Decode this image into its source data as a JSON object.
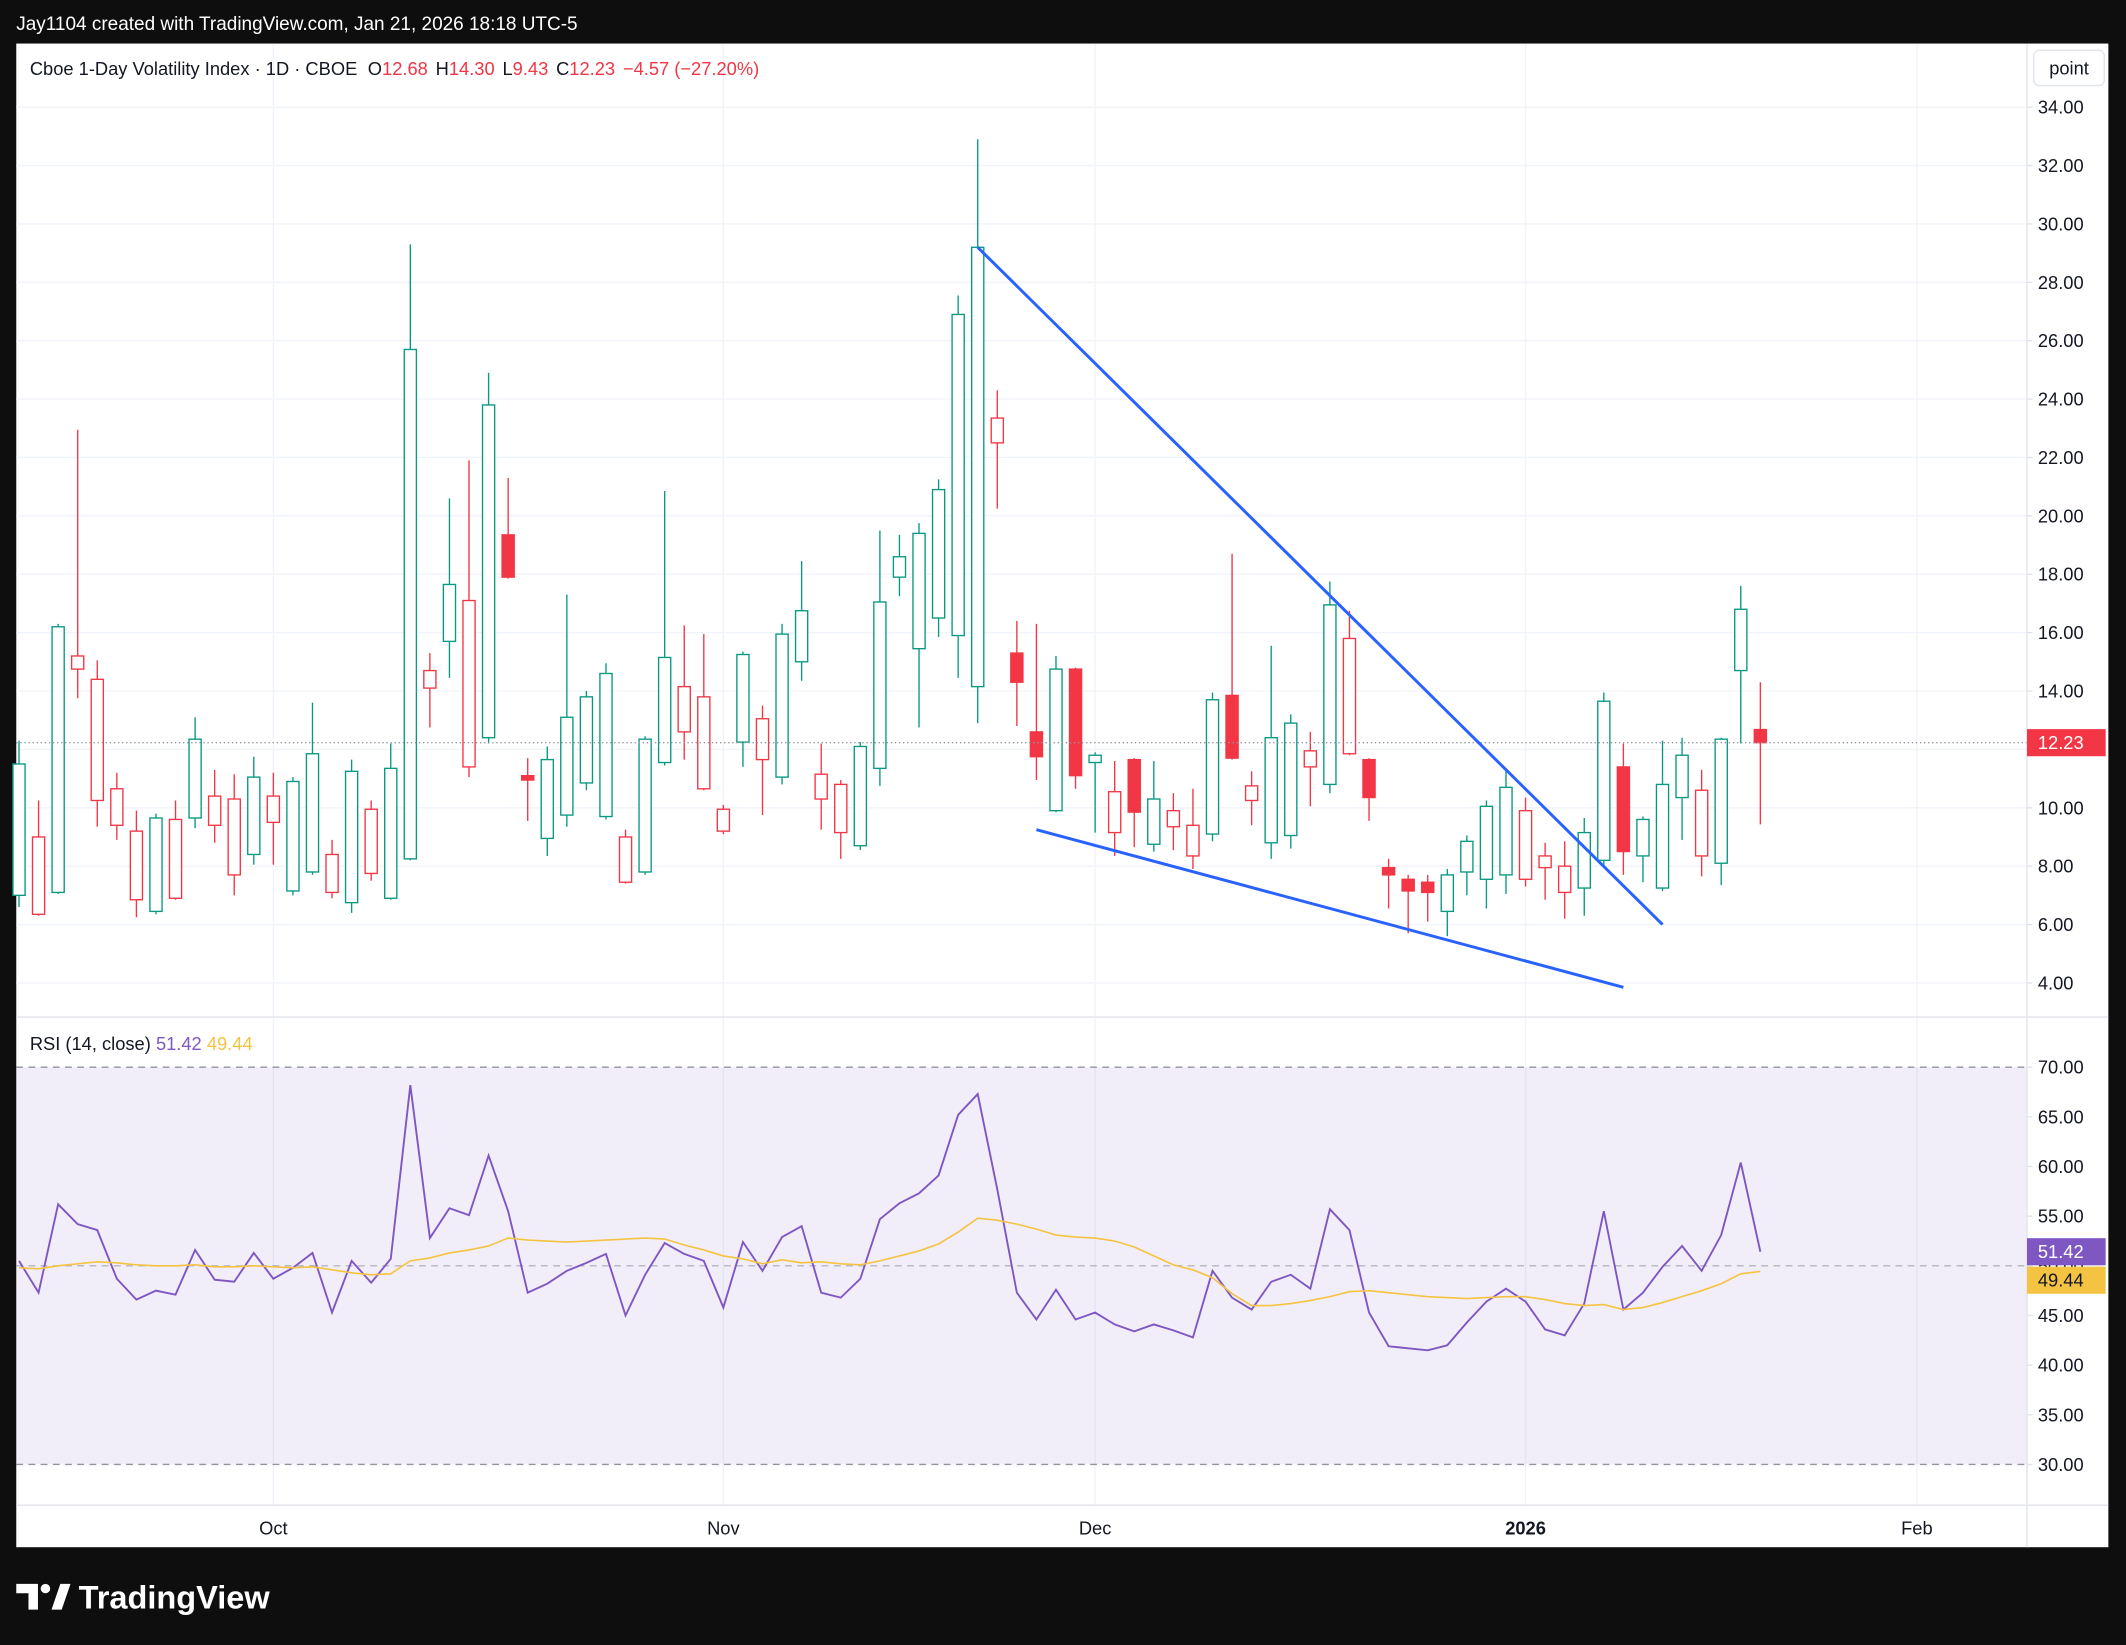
{
  "header": {
    "credit": "Jay1104 created with TradingView.com, Jan 21, 2026 18:18 UTC-5"
  },
  "footer": {
    "logo": "TradingView"
  },
  "scale_mode": "point",
  "chart_data": [
    {
      "type": "candlestick",
      "title": "Cboe 1-Day Volatility Index · 1D · CBOE",
      "ohlc_labels": [
        "O",
        "H",
        "L",
        "C"
      ],
      "ohlc_values": [
        "12.68",
        "14.30",
        "9.43",
        "12.23"
      ],
      "change": "−4.57",
      "change_percent": "(−27.20%)",
      "open": [
        7.0,
        6.35,
        7.1,
        14.75,
        10.25,
        9.4,
        6.85,
        6.45,
        6.9,
        9.65,
        9.4,
        7.7,
        8.4,
        9.5,
        7.15,
        7.8,
        7.1,
        6.75,
        7.75,
        6.9,
        8.25,
        14.1,
        15.7,
        11.4,
        12.4,
        19.35,
        11.1,
        8.95,
        9.75,
        10.85,
        9.7,
        7.45,
        7.8,
        11.55,
        12.6,
        10.65,
        9.2,
        12.25,
        11.65,
        11.05,
        15.0,
        10.3,
        9.15,
        8.7,
        11.35,
        17.9,
        15.45,
        16.5,
        15.9,
        14.15,
        22.5,
        15.3,
        12.6,
        9.9,
        14.75,
        11.55,
        9.15,
        11.65,
        8.75,
        9.35,
        8.35,
        9.1,
        13.85,
        10.25,
        8.8,
        9.05,
        11.4,
        10.8,
        11.85,
        11.65,
        7.95,
        7.55,
        7.45,
        6.45,
        7.8,
        7.55,
        7.7,
        7.55,
        7.95,
        7.1,
        7.25,
        8.2,
        11.4,
        8.35,
        7.25,
        10.35,
        8.35,
        8.1,
        14.7,
        12.68
      ],
      "high": [
        12.3,
        10.25,
        16.3,
        22.95,
        15.05,
        11.2,
        9.9,
        9.8,
        10.25,
        13.1,
        11.3,
        11.15,
        11.75,
        11.2,
        11.05,
        13.6,
        8.9,
        11.65,
        10.25,
        12.2,
        29.3,
        15.3,
        20.6,
        21.9,
        24.9,
        21.3,
        11.7,
        12.1,
        17.3,
        14.0,
        14.95,
        9.25,
        12.45,
        20.85,
        16.25,
        15.95,
        10.1,
        15.35,
        13.5,
        16.3,
        18.45,
        12.2,
        10.95,
        12.25,
        19.5,
        19.35,
        19.75,
        21.25,
        27.55,
        32.9,
        24.3,
        16.4,
        16.3,
        15.2,
        14.8,
        11.9,
        11.6,
        11.7,
        11.6,
        10.5,
        10.65,
        13.95,
        18.7,
        11.25,
        15.55,
        13.2,
        12.6,
        17.75,
        16.75,
        11.7,
        8.25,
        7.7,
        7.7,
        7.9,
        9.05,
        10.25,
        11.3,
        10.35,
        8.8,
        8.85,
        9.65,
        13.95,
        12.2,
        9.7,
        12.3,
        12.4,
        11.3,
        12.4,
        17.6,
        14.3
      ],
      "low": [
        6.6,
        6.3,
        7.05,
        13.75,
        9.35,
        8.9,
        6.25,
        6.35,
        6.85,
        9.3,
        8.8,
        7.0,
        8.05,
        8.05,
        7.0,
        7.7,
        6.9,
        6.4,
        7.5,
        6.85,
        8.2,
        12.75,
        14.45,
        11.05,
        12.2,
        17.85,
        9.55,
        8.35,
        9.35,
        10.6,
        9.6,
        7.4,
        7.7,
        11.45,
        11.65,
        10.6,
        9.1,
        11.4,
        9.75,
        10.8,
        14.35,
        9.25,
        8.25,
        8.55,
        10.75,
        17.25,
        12.75,
        15.85,
        14.45,
        12.9,
        20.25,
        12.8,
        10.95,
        9.85,
        10.65,
        9.15,
        8.35,
        8.65,
        8.5,
        8.55,
        7.9,
        8.85,
        11.65,
        9.4,
        8.25,
        8.6,
        10.05,
        10.5,
        11.8,
        9.55,
        6.55,
        5.7,
        6.1,
        5.6,
        7.0,
        6.55,
        7.05,
        7.3,
        6.85,
        6.2,
        6.3,
        7.95,
        7.7,
        7.45,
        7.15,
        8.9,
        7.65,
        7.35,
        12.2,
        9.43
      ],
      "close": [
        11.5,
        9.0,
        16.2,
        15.2,
        14.4,
        10.65,
        9.2,
        9.65,
        9.6,
        12.35,
        10.4,
        10.3,
        11.05,
        10.4,
        10.9,
        11.85,
        8.4,
        11.25,
        9.95,
        11.35,
        25.7,
        14.7,
        17.65,
        17.1,
        23.8,
        17.9,
        10.95,
        11.65,
        13.1,
        13.8,
        14.6,
        9.0,
        12.35,
        15.15,
        14.15,
        13.8,
        9.95,
        15.25,
        13.05,
        15.95,
        16.75,
        11.15,
        10.8,
        12.1,
        17.05,
        18.6,
        19.4,
        20.9,
        26.9,
        29.2,
        23.35,
        14.3,
        11.75,
        14.75,
        11.1,
        11.8,
        10.55,
        9.85,
        10.3,
        9.9,
        9.4,
        13.7,
        11.7,
        10.75,
        12.4,
        12.9,
        11.95,
        16.95,
        15.8,
        10.35,
        7.7,
        7.15,
        7.1,
        7.7,
        8.85,
        10.05,
        10.7,
        9.9,
        8.35,
        8.0,
        9.15,
        13.65,
        8.5,
        9.6,
        10.8,
        11.8,
        10.6,
        12.35,
        16.8,
        12.23
      ],
      "up_color": "#089981",
      "down_color": "#f23645",
      "trendlines": [
        {
          "x": [
            49,
            84
          ],
          "y": [
            29.2,
            6.0
          ]
        },
        {
          "x": [
            52,
            82
          ],
          "y": [
            9.25,
            3.85
          ]
        }
      ],
      "trendline_color": "#2962ff",
      "xlim": [
        -0.14,
        102.63
      ],
      "xticks": [
        {
          "value": 13,
          "label": "Oct"
        },
        {
          "value": 36,
          "label": "Nov"
        },
        {
          "value": 55,
          "label": "Dec"
        },
        {
          "value": 77,
          "label": "2026"
        },
        {
          "value": 97,
          "label": "Feb"
        }
      ],
      "ylim": [
        2.83,
        36.18
      ],
      "yticks": [
        {
          "value": 4,
          "label": "4.00"
        },
        {
          "value": 6,
          "label": "6.00"
        },
        {
          "value": 8,
          "label": "8.00"
        },
        {
          "value": 10,
          "label": "10.00"
        },
        {
          "value": 12,
          "label": "12.00"
        },
        {
          "value": 14,
          "label": "14.00"
        },
        {
          "value": 16,
          "label": "16.00"
        },
        {
          "value": 18,
          "label": "18.00"
        },
        {
          "value": 20,
          "label": "20.00"
        },
        {
          "value": 22,
          "label": "22.00"
        },
        {
          "value": 24,
          "label": "24.00"
        },
        {
          "value": 26,
          "label": "26.00"
        },
        {
          "value": 28,
          "label": "28.00"
        },
        {
          "value": 30,
          "label": "30.00"
        },
        {
          "value": 32,
          "label": "32.00"
        },
        {
          "value": 34,
          "label": "34.00"
        }
      ],
      "grid": true
    },
    {
      "type": "line",
      "title": "RSI (14, close)",
      "series": [
        {
          "color": "#7e57c2",
          "values": [
            50.5,
            47.3,
            56.2,
            54.2,
            53.6,
            48.7,
            46.6,
            47.5,
            47.1,
            51.6,
            48.6,
            48.4,
            51.3,
            48.7,
            49.8,
            51.3,
            45.3,
            50.5,
            48.3,
            50.7,
            68.2,
            52.8,
            55.8,
            55.1,
            61.1,
            55.5,
            47.3,
            48.2,
            49.5,
            50.3,
            51.2,
            45.0,
            49.1,
            52.3,
            51.2,
            50.5,
            45.8,
            52.4,
            49.5,
            52.9,
            54.0,
            47.3,
            46.8,
            48.7,
            54.7,
            56.3,
            57.3,
            59.1,
            65.2,
            67.3,
            57.7,
            47.3,
            44.6,
            47.6,
            44.6,
            45.3,
            44.1,
            43.4,
            44.1,
            43.5,
            42.8,
            49.5,
            46.8,
            45.6,
            48.4,
            49.1,
            47.7,
            55.7,
            53.6,
            45.3,
            41.9,
            41.7,
            41.5,
            42.0,
            44.3,
            46.4,
            47.7,
            46.4,
            43.6,
            43.0,
            46.2,
            55.5,
            45.6,
            47.3,
            49.9,
            52.0,
            49.5,
            53.1,
            60.4,
            51.42
          ]
        },
        {
          "color": "#f5c342",
          "values": [
            49.8,
            49.7,
            50.0,
            50.2,
            50.4,
            50.3,
            50.1,
            50.0,
            50.0,
            50.1,
            49.9,
            49.9,
            50.0,
            49.9,
            49.8,
            49.9,
            49.6,
            49.3,
            49.1,
            49.2,
            50.5,
            50.8,
            51.3,
            51.6,
            52.0,
            52.8,
            52.6,
            52.5,
            52.4,
            52.5,
            52.6,
            52.7,
            52.8,
            52.7,
            52.1,
            51.6,
            51.0,
            50.7,
            50.2,
            50.6,
            50.3,
            50.4,
            50.2,
            50.1,
            50.5,
            51.0,
            51.5,
            52.2,
            53.4,
            54.8,
            54.6,
            54.2,
            53.7,
            53.1,
            52.9,
            52.8,
            52.5,
            51.9,
            51.0,
            50.1,
            49.6,
            48.8,
            47.2,
            46.0,
            46.0,
            46.2,
            46.5,
            46.9,
            47.4,
            47.5,
            47.3,
            47.1,
            46.9,
            46.8,
            46.7,
            46.8,
            46.9,
            46.9,
            46.6,
            46.2,
            46.0,
            46.1,
            45.6,
            45.8,
            46.3,
            46.9,
            47.5,
            48.2,
            49.2,
            49.44
          ]
        }
      ],
      "band": [
        30,
        70
      ],
      "levels": [
        70,
        50,
        30
      ],
      "band_color": "#7e57c2",
      "ylim": [
        25.9,
        75.05
      ],
      "yticks": [
        {
          "value": 30,
          "label": "30.00"
        },
        {
          "value": 35,
          "label": "35.00"
        },
        {
          "value": 40,
          "label": "40.00"
        },
        {
          "value": 45,
          "label": "45.00"
        },
        {
          "value": 50,
          "label": "50.00"
        },
        {
          "value": 55,
          "label": "55.00"
        },
        {
          "value": 60,
          "label": "60.00"
        },
        {
          "value": 65,
          "label": "65.00"
        },
        {
          "value": 70,
          "label": "70.00"
        }
      ],
      "grid": false
    }
  ]
}
